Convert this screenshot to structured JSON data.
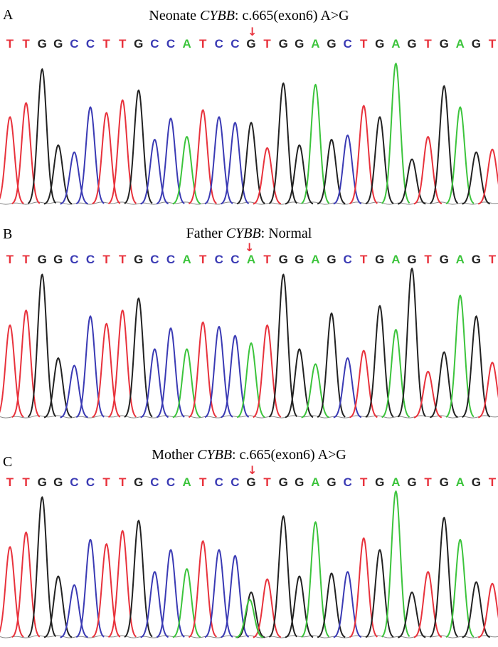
{
  "colors": {
    "A": "#3cc43c",
    "C": "#3a3ab4",
    "G": "#222222",
    "T": "#e8323c",
    "arrow": "#e8323c"
  },
  "arrow_glyph": "↓",
  "panels": [
    {
      "letter": "A",
      "title_prefix": "Neonate ",
      "title_gene": "CYBB",
      "title_suffix": ": c.665(exon6) A>G",
      "bases": [
        "T",
        "T",
        "G",
        "G",
        "C",
        "C",
        "T",
        "T",
        "G",
        "C",
        "C",
        "A",
        "T",
        "C",
        "C",
        "G",
        "T",
        "G",
        "G",
        "A",
        "G",
        "C",
        "T",
        "G",
        "A",
        "G",
        "T",
        "G",
        "A",
        "G",
        "T"
      ],
      "peaks": [
        0.62,
        0.72,
        0.96,
        0.42,
        0.37,
        0.69,
        0.65,
        0.74,
        0.81,
        0.46,
        0.61,
        0.48,
        0.67,
        0.62,
        0.58,
        0.58,
        0.4,
        0.86,
        0.42,
        0.85,
        0.46,
        0.49,
        0.7,
        0.62,
        1.0,
        0.32,
        0.48,
        0.84,
        0.69,
        0.37,
        0.39
      ],
      "secondary": [],
      "marked_base": "G"
    },
    {
      "letter": "B",
      "title_prefix": "Father ",
      "title_gene": "CYBB",
      "title_suffix": ": Normal",
      "bases": [
        "T",
        "T",
        "G",
        "G",
        "C",
        "C",
        "T",
        "T",
        "G",
        "C",
        "C",
        "A",
        "T",
        "C",
        "C",
        "A",
        "T",
        "G",
        "G",
        "A",
        "G",
        "C",
        "T",
        "G",
        "A",
        "G",
        "T",
        "G",
        "A",
        "G",
        "T"
      ],
      "peaks": [
        0.62,
        0.72,
        0.96,
        0.4,
        0.35,
        0.68,
        0.63,
        0.72,
        0.8,
        0.46,
        0.6,
        0.46,
        0.64,
        0.61,
        0.55,
        0.5,
        0.62,
        0.96,
        0.46,
        0.36,
        0.7,
        0.4,
        0.45,
        0.75,
        0.59,
        1.0,
        0.31,
        0.44,
        0.82,
        0.68,
        0.37
      ],
      "secondary": [],
      "marked_base": "A"
    },
    {
      "letter": "C",
      "title_prefix": "Mother ",
      "title_gene": "CYBB",
      "title_suffix": ": c.665(exon6) A>G",
      "bases": [
        "T",
        "T",
        "G",
        "G",
        "C",
        "C",
        "T",
        "T",
        "G",
        "C",
        "C",
        "A",
        "T",
        "C",
        "C",
        "G",
        "T",
        "G",
        "G",
        "A",
        "G",
        "C",
        "T",
        "G",
        "A",
        "G",
        "T",
        "G",
        "A",
        "G",
        "T"
      ],
      "peaks": [
        0.62,
        0.72,
        0.96,
        0.42,
        0.36,
        0.67,
        0.64,
        0.73,
        0.8,
        0.45,
        0.6,
        0.47,
        0.66,
        0.6,
        0.56,
        0.31,
        0.4,
        0.83,
        0.42,
        0.79,
        0.44,
        0.45,
        0.68,
        0.6,
        1.0,
        0.31,
        0.45,
        0.82,
        0.67,
        0.38,
        0.37
      ],
      "secondary": [
        [
          15,
          "A",
          0.26
        ]
      ],
      "marked_base": "G"
    }
  ]
}
